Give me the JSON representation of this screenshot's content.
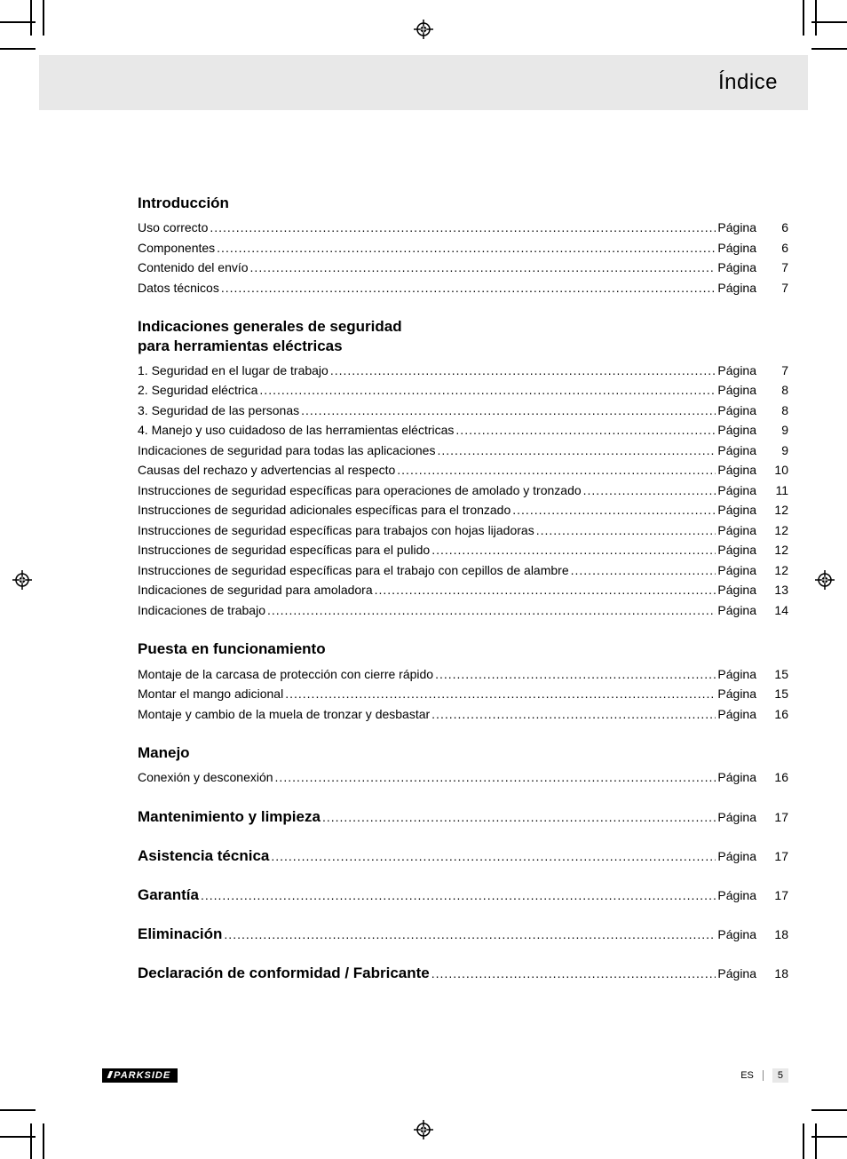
{
  "header": {
    "title": "Índice"
  },
  "page_word": "Página",
  "sections": [
    {
      "title": "Introducción",
      "entries": [
        {
          "label": "Uso correcto",
          "page": "6"
        },
        {
          "label": "Componentes",
          "page": "6"
        },
        {
          "label": "Contenido del envío",
          "page": "7"
        },
        {
          "label": "Datos técnicos",
          "page": "7"
        }
      ]
    },
    {
      "title": "Indicaciones generales de seguridad\npara herramientas eléctricas",
      "entries": [
        {
          "label": "1. Seguridad en el lugar de trabajo",
          "page": "7"
        },
        {
          "label": "2. Seguridad eléctrica",
          "page": "8"
        },
        {
          "label": "3. Seguridad de las personas",
          "page": "8"
        },
        {
          "label": "4. Manejo y uso cuidadoso de las herramientas eléctricas",
          "page": "9"
        },
        {
          "label": "Indicaciones de seguridad para todas las aplicaciones",
          "page": "9"
        },
        {
          "label": "Causas del rechazo y advertencias al respecto",
          "page": "10"
        },
        {
          "label": "Instrucciones de seguridad específicas para operaciones de amolado y tronzado",
          "page": "11"
        },
        {
          "label": "Instrucciones de seguridad adicionales específicas para el tronzado",
          "page": "12"
        },
        {
          "label": "Instrucciones de seguridad específicas para trabajos con hojas lijadoras",
          "page": "12"
        },
        {
          "label": "Instrucciones de seguridad específicas para el pulido",
          "page": "12"
        },
        {
          "label": "Instrucciones de seguridad específicas para el trabajo con cepillos de alambre",
          "page": "12"
        },
        {
          "label": "Indicaciones de seguridad para amoladora",
          "page": "13"
        },
        {
          "label": "Indicaciones de trabajo",
          "page": "14"
        }
      ]
    },
    {
      "title": "Puesta en funcionamiento",
      "entries": [
        {
          "label": "Montaje de la carcasa de protección con cierre rápido",
          "page": "15"
        },
        {
          "label": "Montar el mango adicional",
          "page": "15"
        },
        {
          "label": "Montaje y cambio de la muela de tronzar y desbastar",
          "page": "16"
        }
      ]
    },
    {
      "title": "Manejo",
      "entries": [
        {
          "label": "Conexión y desconexión",
          "page": "16"
        }
      ]
    }
  ],
  "heading_rows": [
    {
      "label": "Mantenimiento y limpieza",
      "page": "17"
    },
    {
      "label": "Asistencia técnica",
      "page": "17"
    },
    {
      "label": "Garantía",
      "page": "17"
    },
    {
      "label": "Eliminación",
      "page": "18"
    },
    {
      "label": "Declaración de conformidad / Fabricante",
      "page": "18"
    }
  ],
  "footer": {
    "brand_prefix": "///",
    "brand": "PARKSIDE",
    "lang": "ES",
    "page_num": "5"
  },
  "colors": {
    "band": "#e8e8e8",
    "text": "#000000",
    "bg": "#ffffff"
  },
  "typography": {
    "title_size_pt": 18,
    "heading_size_pt": 13,
    "body_size_pt": 10.5
  }
}
